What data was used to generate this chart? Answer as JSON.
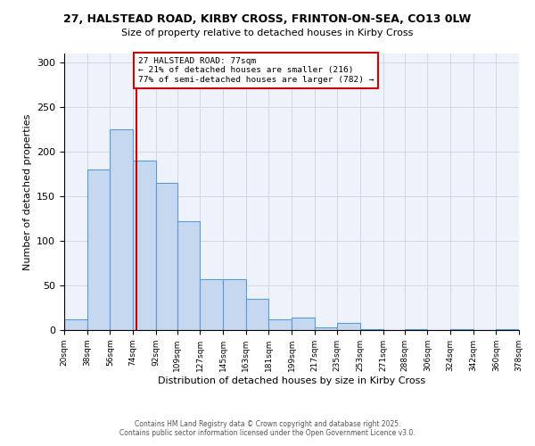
{
  "title": "27, HALSTEAD ROAD, KIRBY CROSS, FRINTON-ON-SEA, CO13 0LW",
  "subtitle": "Size of property relative to detached houses in Kirby Cross",
  "xlabel": "Distribution of detached houses by size in Kirby Cross",
  "ylabel": "Number of detached properties",
  "bar_values": [
    12,
    180,
    225,
    190,
    165,
    122,
    57,
    57,
    35,
    12,
    14,
    3,
    8,
    1,
    0,
    1,
    0,
    1,
    0,
    1
  ],
  "bin_edges": [
    20,
    38,
    56,
    74,
    92,
    109,
    127,
    145,
    163,
    181,
    199,
    217,
    235,
    253,
    271,
    288,
    306,
    324,
    342,
    360,
    378
  ],
  "bar_color": "#c5d8f0",
  "bar_edge_color": "#5b9bd5",
  "vline_x": 77,
  "vline_color": "#cc0000",
  "annotation_text": "27 HALSTEAD ROAD: 77sqm\n← 21% of detached houses are smaller (216)\n77% of semi-detached houses are larger (782) →",
  "annotation_box_color": "#ffffff",
  "annotation_box_edge_color": "#cc0000",
  "ylim": [
    0,
    310
  ],
  "yticks": [
    0,
    50,
    100,
    150,
    200,
    250,
    300
  ],
  "xlim": [
    20,
    378
  ],
  "tick_labels": [
    "20sqm",
    "38sqm",
    "56sqm",
    "74sqm",
    "92sqm",
    "109sqm",
    "127sqm",
    "145sqm",
    "163sqm",
    "181sqm",
    "199sqm",
    "217sqm",
    "235sqm",
    "253sqm",
    "271sqm",
    "288sqm",
    "306sqm",
    "324sqm",
    "342sqm",
    "360sqm",
    "378sqm"
  ],
  "footnote1": "Contains HM Land Registry data © Crown copyright and database right 2025.",
  "footnote2": "Contains public sector information licensed under the Open Government Licence v3.0.",
  "grid_color": "#d0d8e8",
  "bg_color": "#eef2fa",
  "fig_bg_color": "#ffffff"
}
